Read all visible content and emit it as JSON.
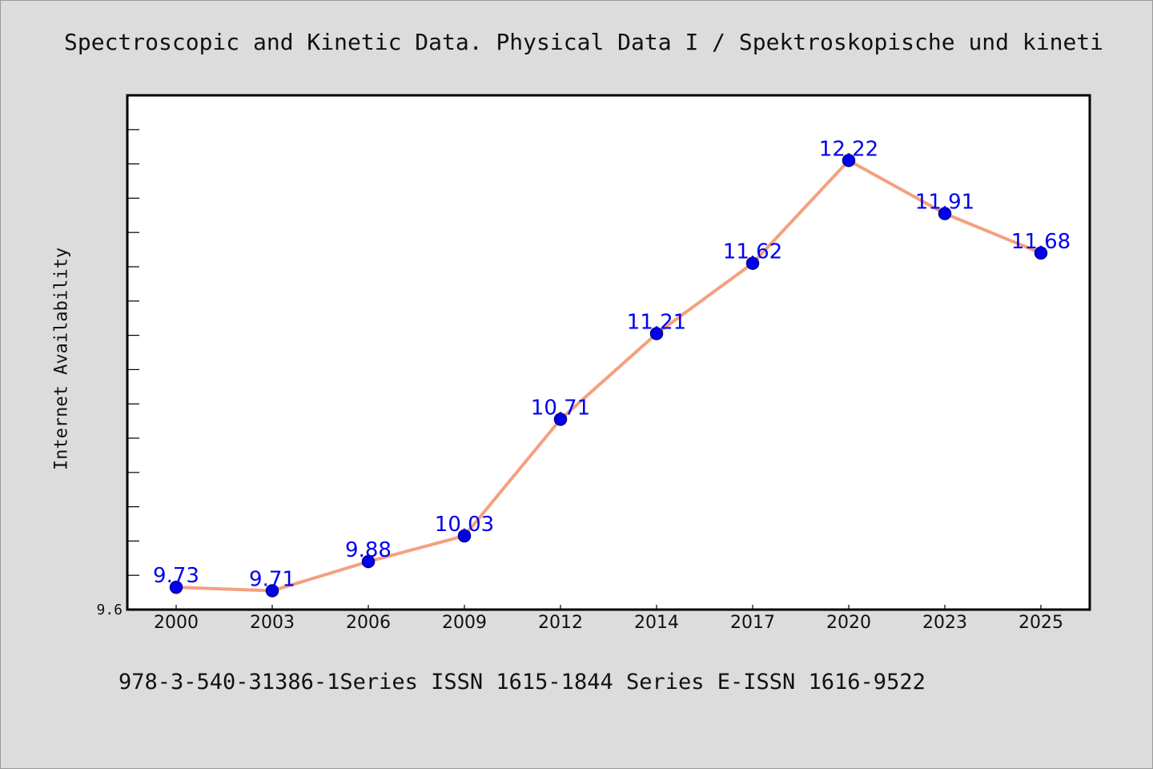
{
  "colors": {
    "line": "#f4a07f",
    "marker": "#0000ee",
    "marker_stroke": "#00008b",
    "label": "#0000ee"
  },
  "chart_data": {
    "type": "line",
    "title": "Spectroscopic and Kinetic Data. Physical Data I / Spektroskopische und kinetisch",
    "xlabel": "",
    "ylabel": "Internet Availability",
    "categories": [
      "2000",
      "2003",
      "2006",
      "2009",
      "2012",
      "2014",
      "2017",
      "2020",
      "2023",
      "2025"
    ],
    "series": [
      {
        "values": [
          9.73,
          9.71,
          9.88,
          10.03,
          10.71,
          11.21,
          11.62,
          12.22,
          11.91,
          11.68
        ]
      }
    ],
    "data_labels": [
      "9.73",
      "9.71",
      "9.88",
      "10.03",
      "10.71",
      "11.21",
      "11.62",
      "12.22",
      "11.91",
      "11.68"
    ],
    "y_tick_labels": [
      "9.6"
    ],
    "ylim": [
      9.6,
      12.6
    ],
    "grid": false,
    "footnote": "978-3-540-31386-1Series ISSN 1615-1844 Series E-ISSN 1616-9522"
  }
}
